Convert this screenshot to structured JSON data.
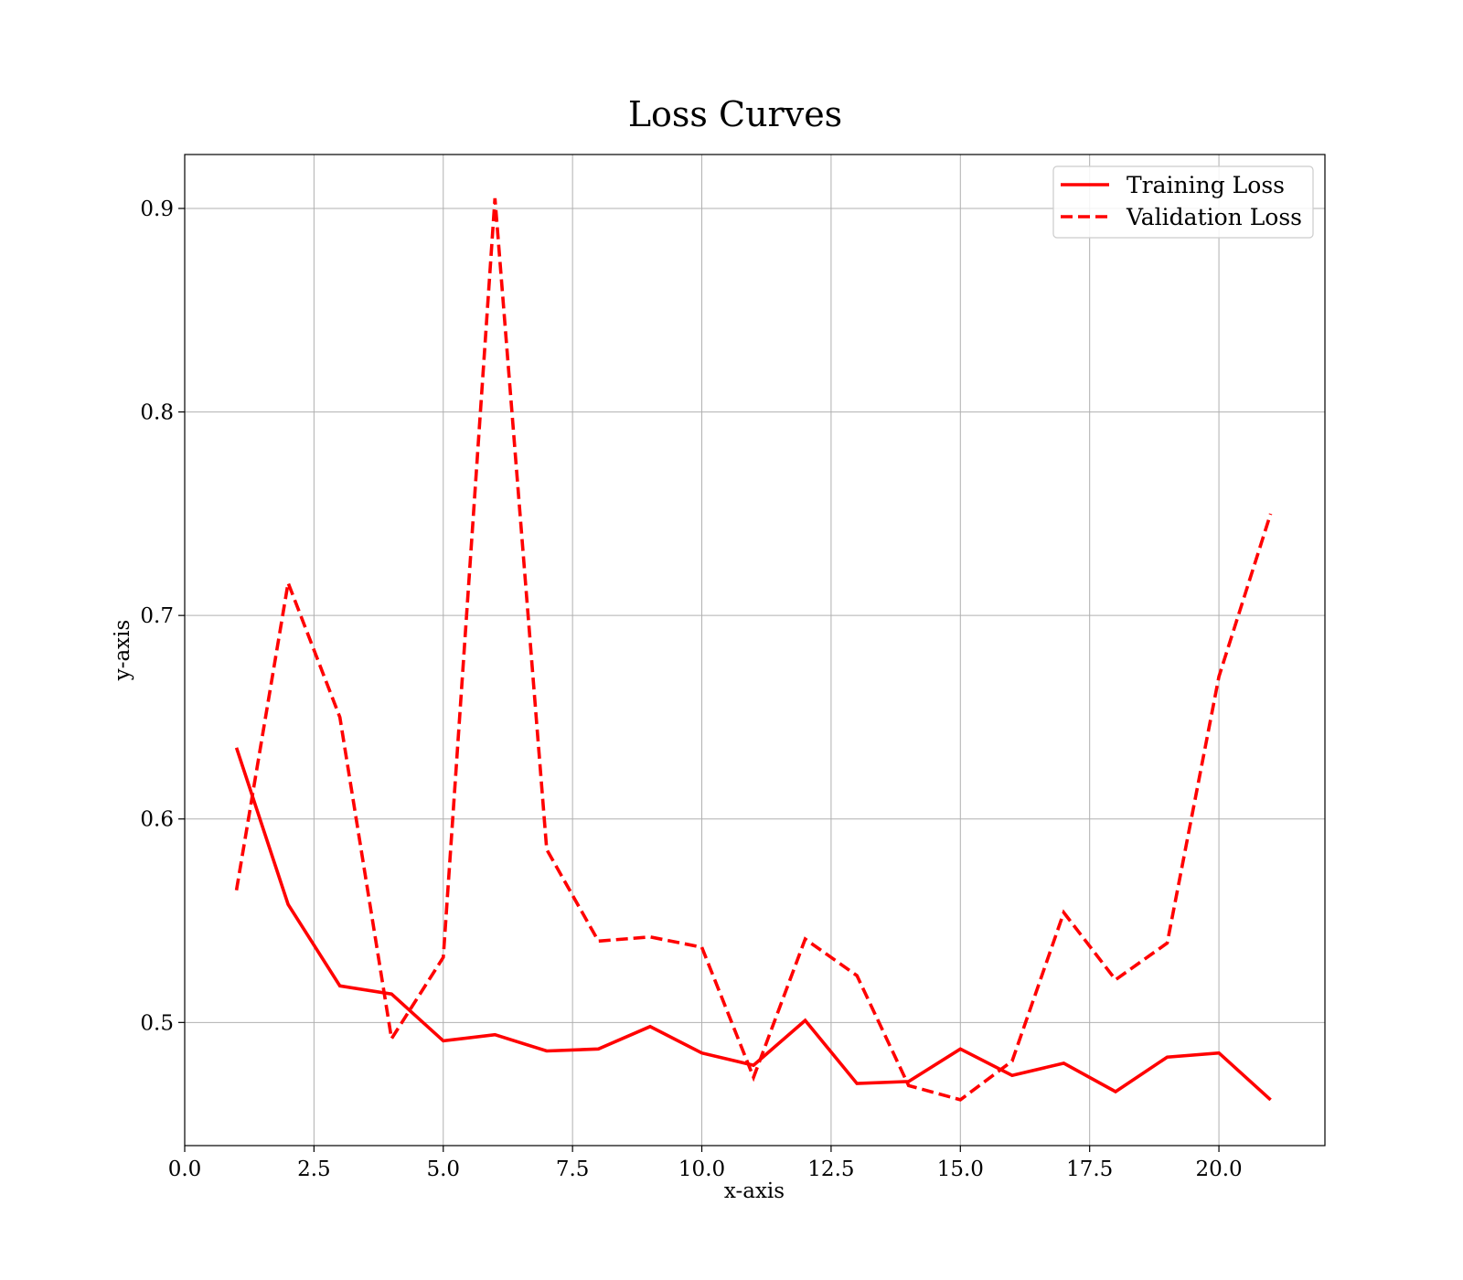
{
  "chart_data": {
    "type": "line",
    "title": "Loss Curves",
    "xlabel": "x-axis",
    "ylabel": "y-axis",
    "xlim": [
      0,
      22.05
    ],
    "ylim": [
      0.4395,
      0.9265
    ],
    "xticks": [
      0.0,
      2.5,
      5.0,
      7.5,
      10.0,
      12.5,
      15.0,
      17.5,
      20.0
    ],
    "xtick_labels": [
      "0.0",
      "2.5",
      "5.0",
      "7.5",
      "10.0",
      "12.5",
      "15.0",
      "17.5",
      "20.0"
    ],
    "yticks": [
      0.5,
      0.6,
      0.7,
      0.8,
      0.9
    ],
    "ytick_labels": [
      "0.5",
      "0.6",
      "0.7",
      "0.8",
      "0.9"
    ],
    "grid": true,
    "legend_position": "top-right",
    "color": "#ff0000",
    "x": [
      1,
      2,
      3,
      4,
      5,
      6,
      7,
      8,
      9,
      10,
      11,
      12,
      13,
      14,
      15,
      16,
      17,
      18,
      19,
      20,
      21
    ],
    "series": [
      {
        "name": "Training Loss",
        "style": "solid",
        "values": [
          0.635,
          0.558,
          0.518,
          0.514,
          0.491,
          0.494,
          0.486,
          0.487,
          0.498,
          0.485,
          0.479,
          0.501,
          0.47,
          0.471,
          0.487,
          0.474,
          0.48,
          0.466,
          0.483,
          0.485,
          0.462
        ]
      },
      {
        "name": "Validation Loss",
        "style": "dashed",
        "values": [
          0.565,
          0.716,
          0.65,
          0.492,
          0.532,
          0.905,
          0.585,
          0.54,
          0.542,
          0.537,
          0.473,
          0.541,
          0.523,
          0.469,
          0.462,
          0.481,
          0.554,
          0.521,
          0.539,
          0.67,
          0.75
        ]
      }
    ]
  }
}
